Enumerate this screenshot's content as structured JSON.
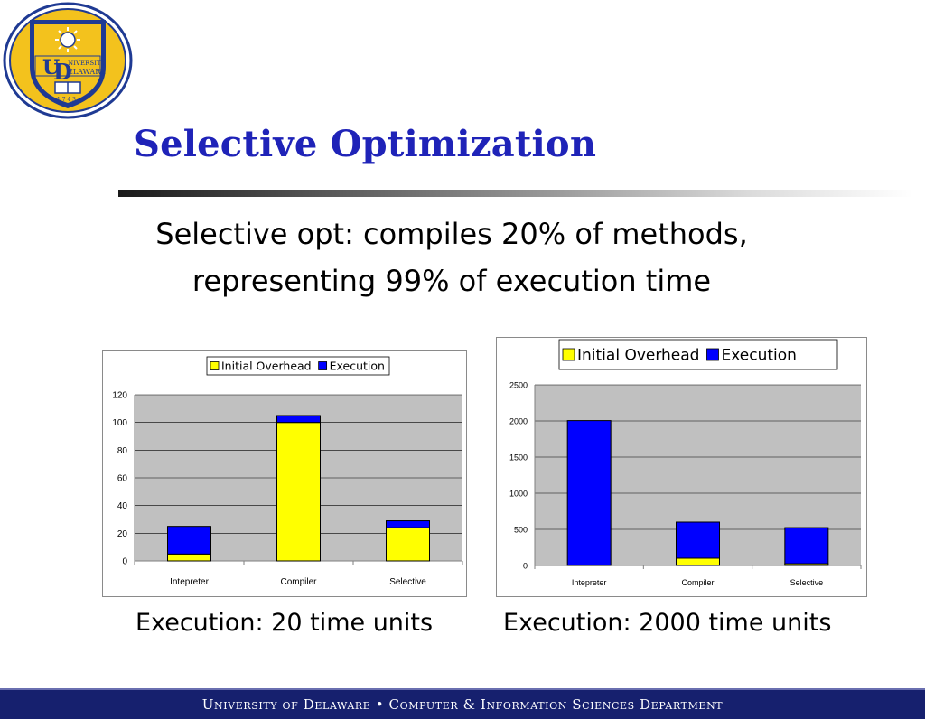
{
  "slide": {
    "title": "Selective Optimization",
    "subtitle_line1": "Selective opt: compiles 20% of methods,",
    "subtitle_line2": "representing 99% of execution time",
    "logo_text": "UNIVERSITY OF DELAWARE 1743"
  },
  "captions": {
    "left": "Execution: 20 time units",
    "right": "Execution: 2000 time units"
  },
  "footer": {
    "text": "University of Delaware • Computer & Information Sciences Department"
  },
  "colors": {
    "title": "#1f23b8",
    "overhead": "#ffff00",
    "execution": "#0000ff",
    "plot_bg": "#c0c0c0",
    "footer_bg": "#16206e"
  },
  "chart_data": [
    {
      "type": "bar",
      "stacked": true,
      "categories": [
        "Intepreter",
        "Compiler",
        "Selective"
      ],
      "series": [
        {
          "name": "Initial Overhead",
          "values": [
            5,
            100,
            24
          ]
        },
        {
          "name": "Execution",
          "values": [
            20,
            5,
            5
          ]
        }
      ],
      "yticks": [
        0,
        20,
        40,
        60,
        80,
        100,
        120
      ],
      "ylim": [
        0,
        120
      ],
      "grid": true,
      "legend": "top"
    },
    {
      "type": "bar",
      "stacked": true,
      "categories": [
        "Intepreter",
        "Compiler",
        "Selective"
      ],
      "series": [
        {
          "name": "Initial Overhead",
          "values": [
            5,
            100,
            24
          ]
        },
        {
          "name": "Execution",
          "values": [
            2000,
            500,
            500
          ]
        }
      ],
      "yticks": [
        0,
        500,
        1000,
        1500,
        2000,
        2500
      ],
      "ylim": [
        0,
        2500
      ],
      "grid": true,
      "legend": "top"
    }
  ]
}
